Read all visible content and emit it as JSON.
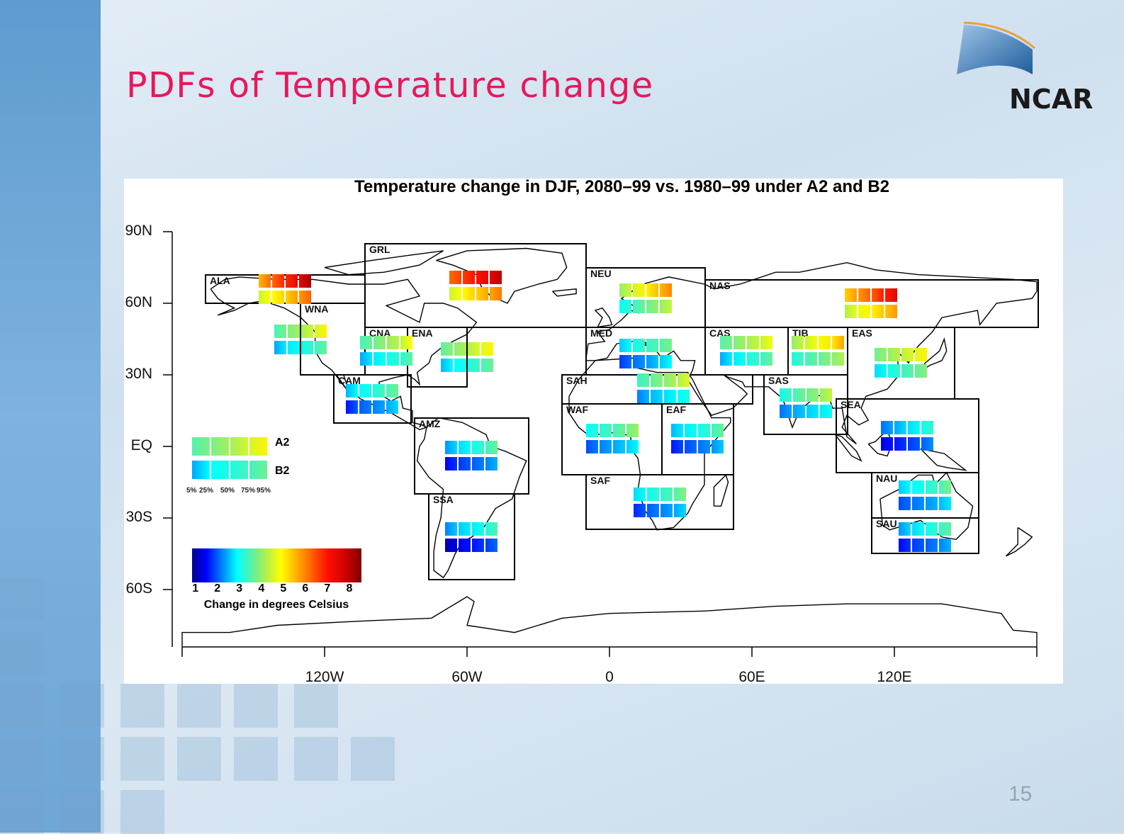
{
  "slide": {
    "title": "PDFs of Temperature change",
    "logo_text": "NCAR",
    "page_number": "15"
  },
  "chart_data": {
    "type": "map",
    "title": "Temperature change in DJF, 2080–99 vs. 1980–99 under A2 and B2",
    "y_ticks": [
      "90N",
      "60N",
      "30N",
      "EQ",
      "30S",
      "60S"
    ],
    "x_ticks": [
      "120W",
      "60W",
      "0",
      "60E",
      "120E"
    ],
    "legend": {
      "scenarios": [
        "A2",
        "B2"
      ],
      "quantile_labels": [
        "5%",
        "25%",
        "50%",
        "75%",
        "95%"
      ],
      "sample": {
        "A2": [
          3.5,
          3.8,
          4.1,
          4.5,
          5.0
        ],
        "B2": [
          2.4,
          2.9,
          3.1,
          3.4,
          3.7
        ]
      }
    },
    "colorbar": {
      "label": "Change in degrees Celsius",
      "ticks": [
        "1",
        "2",
        "3",
        "4",
        "5",
        "6",
        "7",
        "8"
      ],
      "range": [
        0.85,
        8.55
      ],
      "stops": [
        {
          "value": 0.85,
          "color": "#00008f"
        },
        {
          "value": 1.5,
          "color": "#0000ff"
        },
        {
          "value": 2.2,
          "color": "#0080ff"
        },
        {
          "value": 2.9,
          "color": "#00ffff"
        },
        {
          "value": 3.6,
          "color": "#60f0a0"
        },
        {
          "value": 4.2,
          "color": "#b0f050"
        },
        {
          "value": 4.9,
          "color": "#ffff00"
        },
        {
          "value": 5.6,
          "color": "#ffb000"
        },
        {
          "value": 6.3,
          "color": "#ff6000"
        },
        {
          "value": 7.0,
          "color": "#ff1000"
        },
        {
          "value": 7.8,
          "color": "#d00000"
        },
        {
          "value": 8.55,
          "color": "#800000"
        }
      ]
    },
    "regions": [
      {
        "name": "ALA",
        "A2": [
          5.5,
          6.2,
          6.8,
          7.4,
          8.2
        ],
        "B2": [
          4.4,
          4.9,
          5.3,
          5.8,
          6.3
        ]
      },
      {
        "name": "GRL",
        "A2": [
          6.2,
          6.6,
          7.0,
          7.5,
          8.0
        ],
        "B2": [
          4.4,
          4.9,
          5.3,
          5.7,
          6.1
        ]
      },
      {
        "name": "WNA",
        "A2": [
          3.4,
          3.8,
          4.1,
          4.5,
          5.0
        ],
        "B2": [
          2.4,
          2.8,
          3.0,
          3.3,
          3.7
        ]
      },
      {
        "name": "CNA",
        "A2": [
          3.4,
          3.7,
          4.0,
          4.3,
          4.9
        ],
        "B2": [
          2.4,
          2.8,
          3.0,
          3.2,
          3.6
        ]
      },
      {
        "name": "ENA",
        "A2": [
          3.6,
          3.9,
          4.2,
          4.6,
          5.0
        ],
        "B2": [
          2.5,
          2.9,
          3.1,
          3.4,
          3.7
        ]
      },
      {
        "name": "CAM",
        "A2": [
          2.5,
          2.9,
          3.1,
          3.4,
          3.7
        ],
        "B2": [
          1.6,
          2.0,
          2.2,
          2.4,
          2.7
        ]
      },
      {
        "name": "AMZ",
        "A2": [
          2.3,
          2.7,
          3.0,
          3.3,
          3.7
        ],
        "B2": [
          1.4,
          1.8,
          2.0,
          2.2,
          2.5
        ]
      },
      {
        "name": "SSA",
        "A2": [
          2.2,
          2.6,
          2.8,
          3.1,
          3.5
        ],
        "B2": [
          1.0,
          1.4,
          1.6,
          1.8,
          2.1
        ]
      },
      {
        "name": "NEU",
        "A2": [
          4.0,
          4.5,
          5.0,
          5.5,
          6.0
        ],
        "B2": [
          2.9,
          3.3,
          3.7,
          4.0,
          4.4
        ]
      },
      {
        "name": "NAS",
        "A2": [
          5.3,
          5.8,
          6.3,
          6.9,
          7.5
        ],
        "B2": [
          4.2,
          4.7,
          5.0,
          5.4,
          5.8
        ]
      },
      {
        "name": "MED",
        "A2": [
          2.6,
          3.0,
          3.3,
          3.5,
          3.8
        ],
        "B2": [
          1.8,
          2.1,
          2.3,
          2.6,
          2.9
        ]
      },
      {
        "name": "CAS",
        "A2": [
          3.5,
          3.8,
          4.1,
          4.4,
          4.8
        ],
        "B2": [
          2.4,
          2.8,
          3.1,
          3.3,
          3.7
        ]
      },
      {
        "name": "TIB",
        "A2": [
          4.0,
          4.4,
          4.8,
          5.1,
          5.7
        ],
        "B2": [
          3.1,
          3.4,
          3.6,
          3.9,
          4.2
        ]
      },
      {
        "name": "EAS",
        "A2": [
          3.7,
          4.0,
          4.3,
          4.6,
          5.0
        ],
        "B2": [
          2.7,
          3.0,
          3.3,
          3.6,
          3.9
        ]
      },
      {
        "name": "SAH",
        "A2": [
          3.3,
          3.6,
          3.9,
          4.2,
          4.6
        ],
        "B2": [
          2.2,
          2.5,
          2.7,
          2.9,
          3.1
        ]
      },
      {
        "name": "SAS",
        "A2": [
          3.0,
          3.4,
          3.7,
          4.0,
          4.4
        ],
        "B2": [
          2.1,
          2.4,
          2.6,
          2.8,
          3.0
        ]
      },
      {
        "name": "SEA",
        "A2": [
          2.1,
          2.4,
          2.7,
          3.0,
          3.3
        ],
        "B2": [
          1.3,
          1.6,
          1.8,
          2.0,
          2.3
        ]
      },
      {
        "name": "WAF",
        "A2": [
          2.9,
          3.2,
          3.4,
          3.7,
          4.1
        ],
        "B2": [
          1.9,
          2.2,
          2.4,
          2.6,
          2.9
        ]
      },
      {
        "name": "EAF",
        "A2": [
          2.5,
          2.8,
          3.0,
          3.3,
          3.7
        ],
        "B2": [
          1.6,
          1.9,
          2.1,
          2.3,
          2.6
        ]
      },
      {
        "name": "SAF",
        "A2": [
          2.7,
          3.0,
          3.2,
          3.5,
          3.9
        ],
        "B2": [
          1.7,
          2.0,
          2.2,
          2.4,
          2.7
        ]
      },
      {
        "name": "NAU",
        "A2": [
          2.6,
          2.9,
          3.1,
          3.4,
          3.8
        ],
        "B2": [
          1.9,
          2.1,
          2.3,
          2.5,
          2.8
        ]
      },
      {
        "name": "SAU",
        "A2": [
          2.3,
          2.7,
          3.0,
          3.3,
          3.6
        ],
        "B2": [
          1.5,
          1.8,
          2.0,
          2.2,
          2.5
        ]
      }
    ]
  }
}
